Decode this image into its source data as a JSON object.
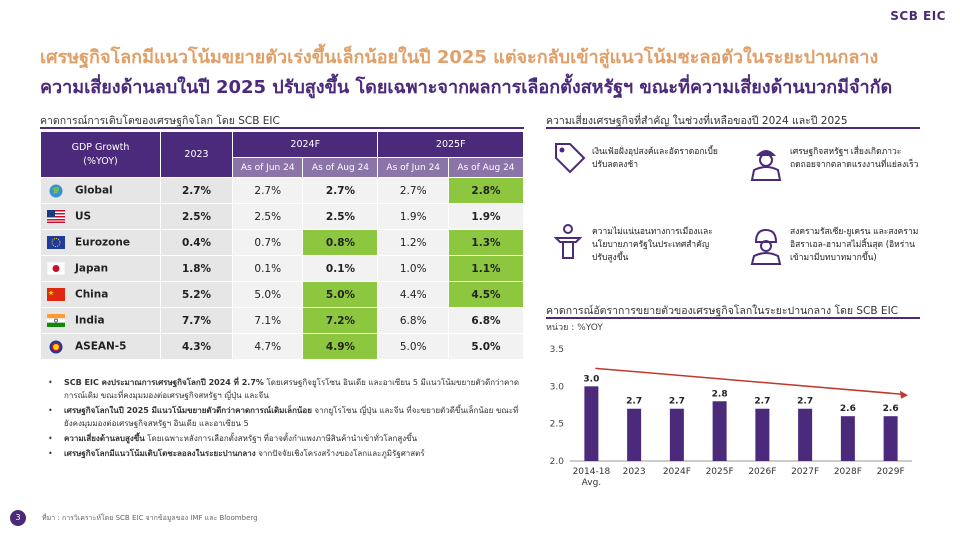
{
  "logo": "SCB EIC",
  "title_line1": "เศรษฐกิจโลกมีแนวโน้มขยายตัวเร่งขึ้นเล็กน้อยในปี 2025 แต่จะกลับเข้าสู่แนวโน้มชะลอตัวในระยะปานกลาง",
  "title_line2": "ความเสี่ยงด้านลบในปี 2025 ปรับสูงขึ้น โดยเฉพาะจากผลการเลือกตั้งสหรัฐฯ ขณะที่ความเสี่ยงด้านบวกมีจำกัด",
  "left_section_title": "คาดการณ์การเติบโตของเศรษฐกิจโลก โดย SCB EIC",
  "table": {
    "head_col1": "GDP Growth\n(%YOY)",
    "head_2023": "2023",
    "head_2024f": "2024F",
    "head_2025f": "2025F",
    "sub_jun": "As of Jun 24",
    "sub_aug": "As of Aug 24",
    "rows": [
      {
        "name": "Global",
        "flag": "globe",
        "v2023": "2.7%",
        "j24": "2.7%",
        "a24": "2.7%",
        "j25": "2.7%",
        "a25": "2.8%"
      },
      {
        "name": "US",
        "flag": "us",
        "v2023": "2.5%",
        "j24": "2.5%",
        "a24": "2.5%",
        "j25": "1.9%",
        "a25": "1.9%"
      },
      {
        "name": "Eurozone",
        "flag": "eu",
        "v2023": "0.4%",
        "j24": "0.7%",
        "a24": "0.8%",
        "j25": "1.2%",
        "a25": "1.3%"
      },
      {
        "name": "Japan",
        "flag": "japan",
        "v2023": "1.8%",
        "j24": "0.1%",
        "a24": "0.1%",
        "j25": "1.0%",
        "a25": "1.1%"
      },
      {
        "name": "China",
        "flag": "china",
        "v2023": "5.2%",
        "j24": "5.0%",
        "a24": "5.0%",
        "j25": "4.4%",
        "a25": "4.5%"
      },
      {
        "name": "India",
        "flag": "india",
        "v2023": "7.7%",
        "j24": "7.1%",
        "a24": "7.2%",
        "j25": "6.8%",
        "a25": "6.8%"
      },
      {
        "name": "ASEAN-5",
        "flag": "asean",
        "v2023": "4.3%",
        "j24": "4.7%",
        "a24": "4.9%",
        "j25": "5.0%",
        "a25": "5.0%"
      }
    ]
  },
  "bullets": [
    {
      "lead": "SCB EIC คงประมาณการเศรษฐกิจโลกปี 2024 ที่ 2.7%",
      "rest": " โดยเศรษฐกิจยูโรโซน อินเดีย และอาเซียน 5 มีแนวโน้มขยายตัวดีกว่าคาดการณ์เดิม ขณะที่คงมุมมองต่อเศรษฐกิจสหรัฐฯ ญี่ปุ่น และจีน"
    },
    {
      "lead": "เศรษฐกิจโลกในปี 2025 มีแนวโน้มขยายตัวดีกว่าคาดการณ์เดิมเล็กน้อย",
      "rest": " จากยูโรโซน ญี่ปุ่น และจีน ที่จะขยายตัวดีขึ้นเล็กน้อย ขณะที่ยังคงมุมมองต่อเศรษฐกิจสหรัฐฯ อินเดีย และอาเซียน 5"
    },
    {
      "lead": "ความเสี่ยงด้านลบสูงขึ้น",
      "rest": " โดยเฉพาะหลังการเลือกตั้งสหรัฐฯ ที่อาจตั้งกำแพงภาษีสินค้านำเข้าทั่วโลกสูงขึ้น"
    },
    {
      "lead": "เศรษฐกิจโลกมีแนวโน้มเติบโตชะลอลงในระยะปานกลาง",
      "rest": " จากปัจจัยเชิงโครงสร้างของโลกและภูมิรัฐศาสตร์"
    }
  ],
  "risk_section_title": "ความเสี่ยงเศรษฐกิจที่สำคัญ ในช่วงที่เหลือของปี 2024 และปี 2025",
  "risks": [
    {
      "icon": "price-tag-icon",
      "text": "เงินเฟ้อฝั่งอุปสงค์และอัตราดอกเบี้ยปรับลดลงช้า"
    },
    {
      "icon": "worker-icon",
      "text": "เศรษฐกิจสหรัฐฯ เสี่ยงเกิดภาวะถดถอยจากตลาดแรงงานที่แย่ลงเร็ว"
    },
    {
      "icon": "podium-icon",
      "text": "ความไม่แน่นอนทางการเมืองและนโยบายภาครัฐในประเทศสำคัญปรับสูงขึ้น"
    },
    {
      "icon": "soldier-icon",
      "text": "สงครามรัสเซีย-ยูเครน และสงครามอิสราเอล-ฮามาสไม่สิ้นสุด (อิหร่านเข้ามามีบทบาทมากขึ้น)"
    }
  ],
  "chart_section_title": "คาดการณ์อัตราการขยายตัวของเศรษฐกิจโลกในระยะปานกลาง โดย SCB EIC",
  "chart_data": {
    "type": "bar",
    "unit_label": "หน่วย : %YOY",
    "categories": [
      "2014-18 Avg.",
      "2023",
      "2024F",
      "2025F",
      "2026F",
      "2027F",
      "2028F",
      "2029F"
    ],
    "values": [
      3.0,
      2.7,
      2.7,
      2.8,
      2.7,
      2.7,
      2.6,
      2.6
    ],
    "value_labels": [
      "3.0",
      "2.7",
      "2.7",
      "2.8",
      "2.7",
      "2.7",
      "2.6",
      "2.6"
    ],
    "ylim": [
      2.0,
      3.5
    ],
    "yticks": [
      "2.0",
      "2.5",
      "3.0",
      "3.5"
    ],
    "bar_color": "#4b2a7b",
    "trend_arrow_color": "#c0392b"
  },
  "page_number": "3",
  "source": "ที่มา : การวิเคราะห์โดย SCB EIC จากข้อมูลของ IMF และ Bloomberg"
}
